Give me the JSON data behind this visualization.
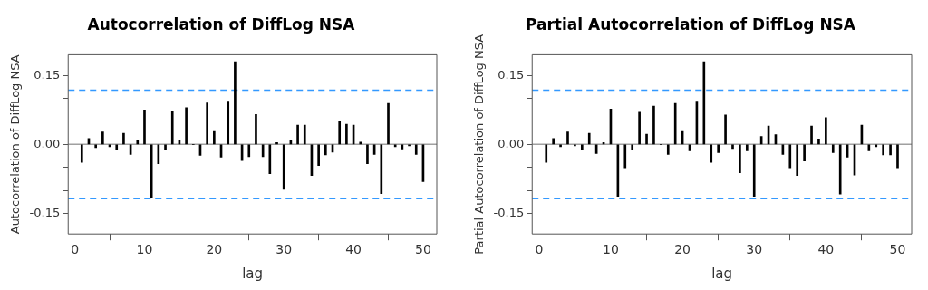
{
  "chart_data": [
    {
      "type": "bar",
      "title": "Autocorrelation of DiffLog NSA",
      "xlabel": "lag",
      "ylabel": "Autocorrelation of DiffLog NSA",
      "color": "#000000",
      "x": [
        1,
        2,
        3,
        4,
        5,
        6,
        7,
        8,
        9,
        10,
        11,
        12,
        13,
        14,
        15,
        16,
        17,
        18,
        19,
        20,
        21,
        22,
        23,
        24,
        25,
        26,
        27,
        28,
        29,
        30,
        31,
        32,
        33,
        34,
        35,
        36,
        37,
        38,
        39,
        40,
        41,
        42,
        43,
        44,
        45,
        46,
        47,
        48,
        49,
        50
      ],
      "values": [
        -0.039,
        0.013,
        -0.007,
        0.027,
        -0.005,
        -0.011,
        0.024,
        -0.022,
        0.008,
        0.075,
        -0.116,
        -0.042,
        -0.011,
        0.073,
        0.009,
        0.08,
        0,
        -0.024,
        0.09,
        0.03,
        -0.028,
        0.094,
        0.18,
        -0.035,
        -0.027,
        0.065,
        -0.027,
        -0.064,
        0.004,
        -0.098,
        0.009,
        0.042,
        0.042,
        -0.068,
        -0.046,
        -0.023,
        -0.017,
        0.051,
        0.044,
        0.042,
        0.005,
        -0.042,
        -0.022,
        -0.107,
        0.089,
        -0.005,
        -0.01,
        -0.003,
        -0.022,
        -0.081
      ],
      "xlim": [
        -0.96,
        51.96
      ],
      "xticks": [
        0,
        10,
        20,
        30,
        40,
        50
      ],
      "ylim": [
        -0.195,
        0.195
      ],
      "yticks": [
        {
          "value": -0.15,
          "label": "-0.15"
        },
        {
          "value": -0.1,
          "label": null
        },
        {
          "value": -0.05,
          "label": null
        },
        {
          "value": 0,
          "label": "0.00"
        },
        {
          "value": 0.05,
          "label": null
        },
        {
          "value": 0.1,
          "label": null
        },
        {
          "value": 0.15,
          "label": "0.15"
        }
      ],
      "ref_lines": [
        {
          "axis": "y",
          "value": 0,
          "color": "#a0a0a0",
          "line_style": "solid"
        },
        {
          "axis": "y",
          "value": 0.118,
          "color": "#3399ff",
          "line_style": "dashed"
        },
        {
          "axis": "y",
          "value": -0.118,
          "color": "#3399ff",
          "line_style": "dashed"
        }
      ]
    },
    {
      "type": "bar",
      "title": "Partial Autocorrelation of DiffLog NSA",
      "xlabel": "lag",
      "ylabel": "Partial Autocorrelation of DiffLog NSA",
      "color": "#000000",
      "x": [
        1,
        2,
        3,
        4,
        5,
        6,
        7,
        8,
        9,
        10,
        11,
        12,
        13,
        14,
        15,
        16,
        17,
        18,
        19,
        20,
        21,
        22,
        23,
        24,
        25,
        26,
        27,
        28,
        29,
        30,
        31,
        32,
        33,
        34,
        35,
        36,
        37,
        38,
        39,
        40,
        41,
        42,
        43,
        44,
        45,
        46,
        47,
        48,
        49,
        50
      ],
      "values": [
        -0.039,
        0.013,
        -0.005,
        0.027,
        -0.003,
        -0.012,
        0.024,
        -0.02,
        0.004,
        0.077,
        -0.113,
        -0.051,
        -0.011,
        0.07,
        0.022,
        0.083,
        0,
        -0.022,
        0.089,
        0.03,
        -0.014,
        0.094,
        0.18,
        -0.039,
        -0.018,
        0.064,
        -0.009,
        -0.062,
        -0.014,
        -0.113,
        0.017,
        0.04,
        0.021,
        -0.022,
        -0.051,
        -0.068,
        -0.036,
        0.04,
        0.012,
        0.058,
        -0.018,
        -0.108,
        -0.028,
        -0.067,
        0.042,
        -0.014,
        -0.005,
        -0.023,
        -0.023,
        -0.051
      ],
      "xlim": [
        -0.96,
        51.96
      ],
      "xticks": [
        0,
        10,
        20,
        30,
        40,
        50
      ],
      "ylim": [
        -0.195,
        0.195
      ],
      "yticks": [
        {
          "value": -0.15,
          "label": "-0.15"
        },
        {
          "value": -0.1,
          "label": null
        },
        {
          "value": -0.05,
          "label": null
        },
        {
          "value": 0,
          "label": "0.00"
        },
        {
          "value": 0.05,
          "label": null
        },
        {
          "value": 0.1,
          "label": null
        },
        {
          "value": 0.15,
          "label": "0.15"
        }
      ],
      "ref_lines": [
        {
          "axis": "y",
          "value": 0,
          "color": "#a0a0a0",
          "line_style": "solid"
        },
        {
          "axis": "y",
          "value": 0.118,
          "color": "#3399ff",
          "line_style": "dashed"
        },
        {
          "axis": "y",
          "value": -0.118,
          "color": "#3399ff",
          "line_style": "dashed"
        }
      ]
    }
  ]
}
